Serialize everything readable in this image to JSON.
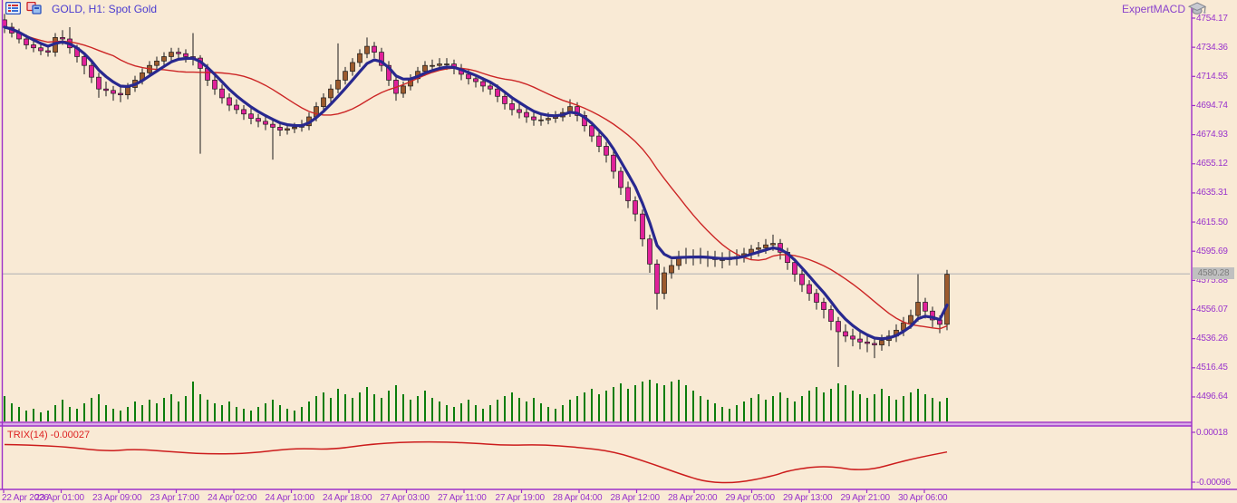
{
  "header": {
    "title": "GOLD, H1: Spot Gold",
    "expert": "ExpertMACD",
    "icons": [
      "chart-properties-icon",
      "indicator-window-icon",
      "expert-cap-icon"
    ]
  },
  "colors": {
    "background": "#f9ead5",
    "frame": "#9e30c9",
    "separator_fill": "#d9a9e9",
    "axis_text": "#9933cc",
    "title_text": "#4a3bd0",
    "expert_text": "#8a43cc",
    "bull_candle": "#9c5a2d",
    "bear_candle": "#e0219a",
    "wick": "#1a1a1a",
    "ma_fast": "#28288f",
    "ma_slow": "#cc2626",
    "volume": "#0b7d0b",
    "trix_line": "#cc1c1c",
    "price_line": "#b6b6b6",
    "price_tag_bg": "#c0c0c0",
    "price_tag_text": "#7d7d7d",
    "trix_label_text": "#dd2222"
  },
  "price_axis": {
    "labels": [
      "4754.17",
      "4734.36",
      "4714.55",
      "4694.74",
      "4674.93",
      "4655.12",
      "4635.31",
      "4615.50",
      "4595.69",
      "4575.88",
      "4556.07",
      "4536.26",
      "4516.45",
      "4496.64"
    ],
    "current_price": "4580.28"
  },
  "time_axis": {
    "labels": [
      "22 Apr 2026",
      "23 Apr 01:00",
      "23 Apr 09:00",
      "23 Apr 17:00",
      "24 Apr 02:00",
      "24 Apr 10:00",
      "24 Apr 18:00",
      "27 Apr 03:00",
      "27 Apr 11:00",
      "27 Apr 19:00",
      "28 Apr 04:00",
      "28 Apr 12:00",
      "28 Apr 20:00",
      "29 Apr 05:00",
      "29 Apr 13:00",
      "29 Apr 21:00",
      "30 Apr 06:00"
    ]
  },
  "trix": {
    "label": "TRIX(14) -0.00027",
    "axis_labels": [
      "0.00018",
      "-0.00096"
    ]
  },
  "chart_data": {
    "type": "candlestick",
    "symbol": "GOLD",
    "timeframe": "H1",
    "description": "Spot Gold",
    "price_min_label": 4496.64,
    "price_max_label": 4754.17,
    "candles": [
      [
        4753,
        4757,
        4744,
        4748
      ],
      [
        4748,
        4751,
        4741,
        4744
      ],
      [
        4744,
        4747,
        4737,
        4740
      ],
      [
        4740,
        4743,
        4733,
        4736
      ],
      [
        4736,
        4740,
        4731,
        4734
      ],
      [
        4734,
        4737,
        4729,
        4732
      ],
      [
        4732,
        4736,
        4728,
        4731
      ],
      [
        4731,
        4744,
        4728,
        4741
      ],
      [
        4741,
        4746,
        4736,
        4740
      ],
      [
        4740,
        4748,
        4730,
        4734
      ],
      [
        4734,
        4736,
        4724,
        4728
      ],
      [
        4728,
        4731,
        4716,
        4722
      ],
      [
        4722,
        4725,
        4710,
        4714
      ],
      [
        4714,
        4717,
        4700,
        4706
      ],
      [
        4706,
        4711,
        4701,
        4705
      ],
      [
        4705,
        4708,
        4698,
        4703
      ],
      [
        4703,
        4707,
        4697,
        4702
      ],
      [
        4702,
        4710,
        4699,
        4707
      ],
      [
        4707,
        4715,
        4704,
        4712
      ],
      [
        4712,
        4720,
        4709,
        4717
      ],
      [
        4717,
        4725,
        4714,
        4722
      ],
      [
        4722,
        4728,
        4718,
        4725
      ],
      [
        4725,
        4731,
        4721,
        4728
      ],
      [
        4728,
        4734,
        4724,
        4731
      ],
      [
        4731,
        4734,
        4726,
        4730
      ],
      [
        4730,
        4733,
        4724,
        4728
      ],
      [
        4728,
        4744,
        4722,
        4727
      ],
      [
        4727,
        4729,
        4662,
        4720
      ],
      [
        4720,
        4723,
        4708,
        4712
      ],
      [
        4712,
        4715,
        4702,
        4706
      ],
      [
        4706,
        4709,
        4696,
        4700
      ],
      [
        4700,
        4703,
        4691,
        4695
      ],
      [
        4695,
        4699,
        4689,
        4692
      ],
      [
        4692,
        4695,
        4685,
        4689
      ],
      [
        4689,
        4693,
        4682,
        4686
      ],
      [
        4686,
        4689,
        4680,
        4684
      ],
      [
        4684,
        4687,
        4678,
        4682
      ],
      [
        4682,
        4685,
        4658,
        4680
      ],
      [
        4680,
        4683,
        4674,
        4678
      ],
      [
        4678,
        4682,
        4675,
        4679
      ],
      [
        4679,
        4683,
        4676,
        4680
      ],
      [
        4680,
        4685,
        4677,
        4681
      ],
      [
        4681,
        4690,
        4678,
        4687
      ],
      [
        4687,
        4697,
        4684,
        4694
      ],
      [
        4694,
        4703,
        4691,
        4700
      ],
      [
        4700,
        4709,
        4697,
        4706
      ],
      [
        4706,
        4737,
        4703,
        4712
      ],
      [
        4712,
        4721,
        4709,
        4718
      ],
      [
        4718,
        4727,
        4715,
        4724
      ],
      [
        4724,
        4733,
        4721,
        4730
      ],
      [
        4730,
        4741,
        4727,
        4735
      ],
      [
        4735,
        4738,
        4727,
        4731
      ],
      [
        4731,
        4734,
        4718,
        4722
      ],
      [
        4722,
        4725,
        4708,
        4712
      ],
      [
        4712,
        4715,
        4698,
        4703
      ],
      [
        4703,
        4711,
        4700,
        4708
      ],
      [
        4708,
        4716,
        4705,
        4713
      ],
      [
        4713,
        4721,
        4710,
        4718
      ],
      [
        4718,
        4725,
        4715,
        4722
      ],
      [
        4722,
        4726,
        4718,
        4722
      ],
      [
        4722,
        4727,
        4719,
        4723
      ],
      [
        4723,
        4727,
        4719,
        4723
      ],
      [
        4723,
        4726,
        4716,
        4720
      ],
      [
        4720,
        4723,
        4712,
        4716
      ],
      [
        4716,
        4719,
        4709,
        4713
      ],
      [
        4713,
        4716,
        4707,
        4711
      ],
      [
        4711,
        4714,
        4704,
        4708
      ],
      [
        4708,
        4711,
        4702,
        4706
      ],
      [
        4706,
        4709,
        4697,
        4701
      ],
      [
        4701,
        4704,
        4692,
        4696
      ],
      [
        4696,
        4699,
        4688,
        4692
      ],
      [
        4692,
        4696,
        4686,
        4690
      ],
      [
        4690,
        4693,
        4683,
        4687
      ],
      [
        4687,
        4690,
        4681,
        4685
      ],
      [
        4685,
        4689,
        4681,
        4685
      ],
      [
        4685,
        4690,
        4682,
        4686
      ],
      [
        4686,
        4691,
        4683,
        4687
      ],
      [
        4687,
        4693,
        4684,
        4690
      ],
      [
        4690,
        4699,
        4687,
        4694
      ],
      [
        4694,
        4697,
        4684,
        4688
      ],
      [
        4688,
        4691,
        4677,
        4681
      ],
      [
        4681,
        4684,
        4670,
        4674
      ],
      [
        4674,
        4677,
        4663,
        4667
      ],
      [
        4667,
        4670,
        4656,
        4661
      ],
      [
        4661,
        4664,
        4645,
        4650
      ],
      [
        4650,
        4653,
        4634,
        4639
      ],
      [
        4639,
        4643,
        4625,
        4630
      ],
      [
        4630,
        4633,
        4616,
        4621
      ],
      [
        4621,
        4624,
        4599,
        4604
      ],
      [
        4604,
        4607,
        4581,
        4587
      ],
      [
        4587,
        4590,
        4556,
        4567
      ],
      [
        4567,
        4585,
        4563,
        4581
      ],
      [
        4581,
        4590,
        4577,
        4586
      ],
      [
        4586,
        4596,
        4583,
        4592
      ],
      [
        4592,
        4598,
        4587,
        4592
      ],
      [
        4592,
        4597,
        4586,
        4592
      ],
      [
        4592,
        4598,
        4587,
        4592
      ],
      [
        4592,
        4596,
        4585,
        4591
      ],
      [
        4591,
        4596,
        4585,
        4590
      ],
      [
        4590,
        4595,
        4584,
        4590
      ],
      [
        4590,
        4596,
        4586,
        4591
      ],
      [
        4591,
        4597,
        4586,
        4592
      ],
      [
        4592,
        4598,
        4588,
        4594
      ],
      [
        4594,
        4600,
        4590,
        4597
      ],
      [
        4597,
        4602,
        4592,
        4598
      ],
      [
        4598,
        4604,
        4594,
        4600
      ],
      [
        4600,
        4607,
        4596,
        4601
      ],
      [
        4601,
        4604,
        4590,
        4595
      ],
      [
        4595,
        4598,
        4583,
        4588
      ],
      [
        4588,
        4591,
        4575,
        4580
      ],
      [
        4580,
        4583,
        4568,
        4573
      ],
      [
        4573,
        4576,
        4562,
        4567
      ],
      [
        4567,
        4570,
        4556,
        4561
      ],
      [
        4561,
        4564,
        4550,
        4556
      ],
      [
        4556,
        4559,
        4542,
        4548
      ],
      [
        4548,
        4551,
        4517,
        4541
      ],
      [
        4541,
        4546,
        4534,
        4538
      ],
      [
        4538,
        4543,
        4531,
        4536
      ],
      [
        4536,
        4541,
        4529,
        4534
      ],
      [
        4534,
        4538,
        4527,
        4533
      ],
      [
        4533,
        4537,
        4523,
        4532
      ],
      [
        4532,
        4539,
        4528,
        4535
      ],
      [
        4535,
        4542,
        4531,
        4538
      ],
      [
        4538,
        4546,
        4534,
        4542
      ],
      [
        4542,
        4551,
        4538,
        4547
      ],
      [
        4547,
        4556,
        4543,
        4552
      ],
      [
        4552,
        4580,
        4548,
        4561
      ],
      [
        4561,
        4564,
        4550,
        4555
      ],
      [
        4555,
        4558,
        4544,
        4549
      ],
      [
        4549,
        4552,
        4540,
        4546
      ],
      [
        4546,
        4583,
        4542,
        4580
      ]
    ],
    "volumes": [
      28,
      20,
      16,
      12,
      14,
      10,
      12,
      18,
      24,
      16,
      14,
      20,
      26,
      30,
      18,
      14,
      12,
      16,
      22,
      18,
      24,
      20,
      26,
      30,
      22,
      28,
      44,
      30,
      24,
      20,
      18,
      22,
      16,
      14,
      12,
      16,
      20,
      24,
      18,
      14,
      12,
      16,
      22,
      28,
      32,
      26,
      36,
      30,
      26,
      32,
      38,
      30,
      26,
      34,
      40,
      30,
      24,
      28,
      34,
      26,
      22,
      18,
      16,
      20,
      24,
      18,
      14,
      18,
      24,
      28,
      32,
      26,
      22,
      26,
      20,
      16,
      14,
      18,
      24,
      28,
      32,
      36,
      30,
      34,
      38,
      42,
      36,
      40,
      44,
      46,
      42,
      40,
      44,
      46,
      40,
      34,
      28,
      24,
      20,
      16,
      14,
      18,
      22,
      26,
      30,
      24,
      28,
      32,
      26,
      22,
      28,
      34,
      38,
      32,
      36,
      42,
      40,
      34,
      30,
      26,
      30,
      36,
      28,
      24,
      28,
      32,
      36,
      30,
      26,
      22,
      26
    ],
    "trix_series": {
      "name": "TRIX(14)",
      "current_value": -0.00027,
      "points": [
        [
          0,
          -0.0001
        ],
        [
          7,
          -0.00012
        ],
        [
          14,
          -0.00026
        ],
        [
          18,
          -0.0002
        ],
        [
          24,
          -0.00028
        ],
        [
          29,
          -0.00032
        ],
        [
          34,
          -0.0003
        ],
        [
          40,
          -0.00018
        ],
        [
          45,
          -0.00022
        ],
        [
          51,
          -8e-05
        ],
        [
          58,
          -3e-05
        ],
        [
          64,
          -6e-05
        ],
        [
          69,
          -0.00012
        ],
        [
          74,
          -0.0001
        ],
        [
          79,
          -0.00016
        ],
        [
          84,
          -0.00026
        ],
        [
          89,
          -0.00052
        ],
        [
          94,
          -0.00082
        ],
        [
          97,
          -0.00096
        ],
        [
          101,
          -0.00098
        ],
        [
          106,
          -0.00082
        ],
        [
          108,
          -0.0007
        ],
        [
          112,
          -0.0006
        ],
        [
          115,
          -0.00062
        ],
        [
          117,
          -0.00068
        ],
        [
          120,
          -0.00066
        ],
        [
          123,
          -0.00052
        ],
        [
          126,
          -0.0004
        ],
        [
          130,
          -0.00027
        ]
      ],
      "axis_max": 0.00018,
      "axis_min": -0.00096
    },
    "overlays": [
      "fast moving average (dark blue)",
      "slow moving average (red)"
    ],
    "current_price": 4580.28
  }
}
